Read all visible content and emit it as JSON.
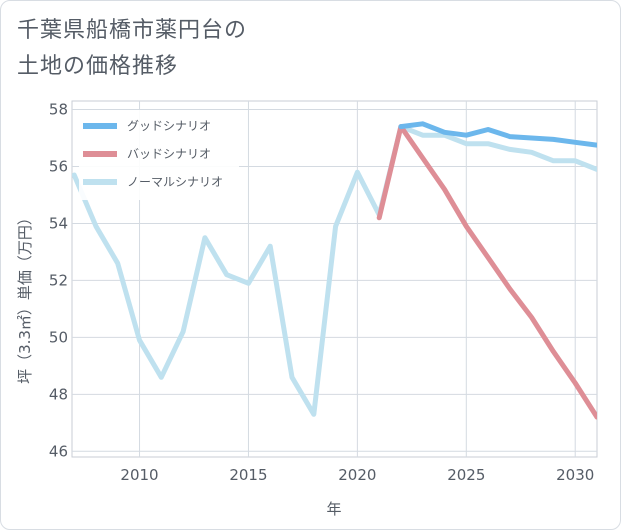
{
  "title_lines": [
    "千葉県船橋市薬円台の",
    "土地の価格推移"
  ],
  "chart_data": {
    "type": "line",
    "title": "千葉県船橋市薬円台の土地の価格推移",
    "xlabel": "年",
    "ylabel": "坪（3.3㎡）単価（万円）",
    "xlim": [
      2006.9,
      2031
    ],
    "ylim": [
      45.8,
      58.3
    ],
    "xticks": [
      2010,
      2015,
      2020,
      2025,
      2030
    ],
    "yticks": [
      46,
      48,
      50,
      52,
      54,
      56,
      58
    ],
    "grid": true,
    "legend_position": "top-left",
    "series": [
      {
        "name": "グッドシナリオ",
        "color": "#6cb7ec",
        "x": [
          2022,
          2023,
          2024,
          2025,
          2026,
          2027,
          2028,
          2029,
          2030,
          2031
        ],
        "values": [
          57.4,
          57.5,
          57.2,
          57.1,
          57.3,
          57.05,
          57.0,
          56.95,
          56.85,
          56.75
        ]
      },
      {
        "name": "バッドシナリオ",
        "color": "#de8e96",
        "x": [
          2021,
          2022,
          2023,
          2024,
          2025,
          2026,
          2027,
          2028,
          2029,
          2030,
          2031
        ],
        "values": [
          54.2,
          57.4,
          56.3,
          55.2,
          53.9,
          52.8,
          51.7,
          50.7,
          49.5,
          48.4,
          47.2
        ]
      },
      {
        "name": "ノーマルシナリオ",
        "color": "#bfe1ef",
        "x": [
          2007,
          2008,
          2009,
          2010,
          2011,
          2012,
          2013,
          2014,
          2015,
          2016,
          2017,
          2018,
          2019,
          2020,
          2021,
          2022,
          2023,
          2024,
          2025,
          2026,
          2027,
          2028,
          2029,
          2030,
          2031
        ],
        "values": [
          55.7,
          53.9,
          52.6,
          49.9,
          48.6,
          50.2,
          53.5,
          52.2,
          51.9,
          53.2,
          48.6,
          47.3,
          53.9,
          55.8,
          54.3,
          57.4,
          57.1,
          57.1,
          56.8,
          56.8,
          56.6,
          56.5,
          56.2,
          56.2,
          55.9
        ]
      }
    ]
  }
}
